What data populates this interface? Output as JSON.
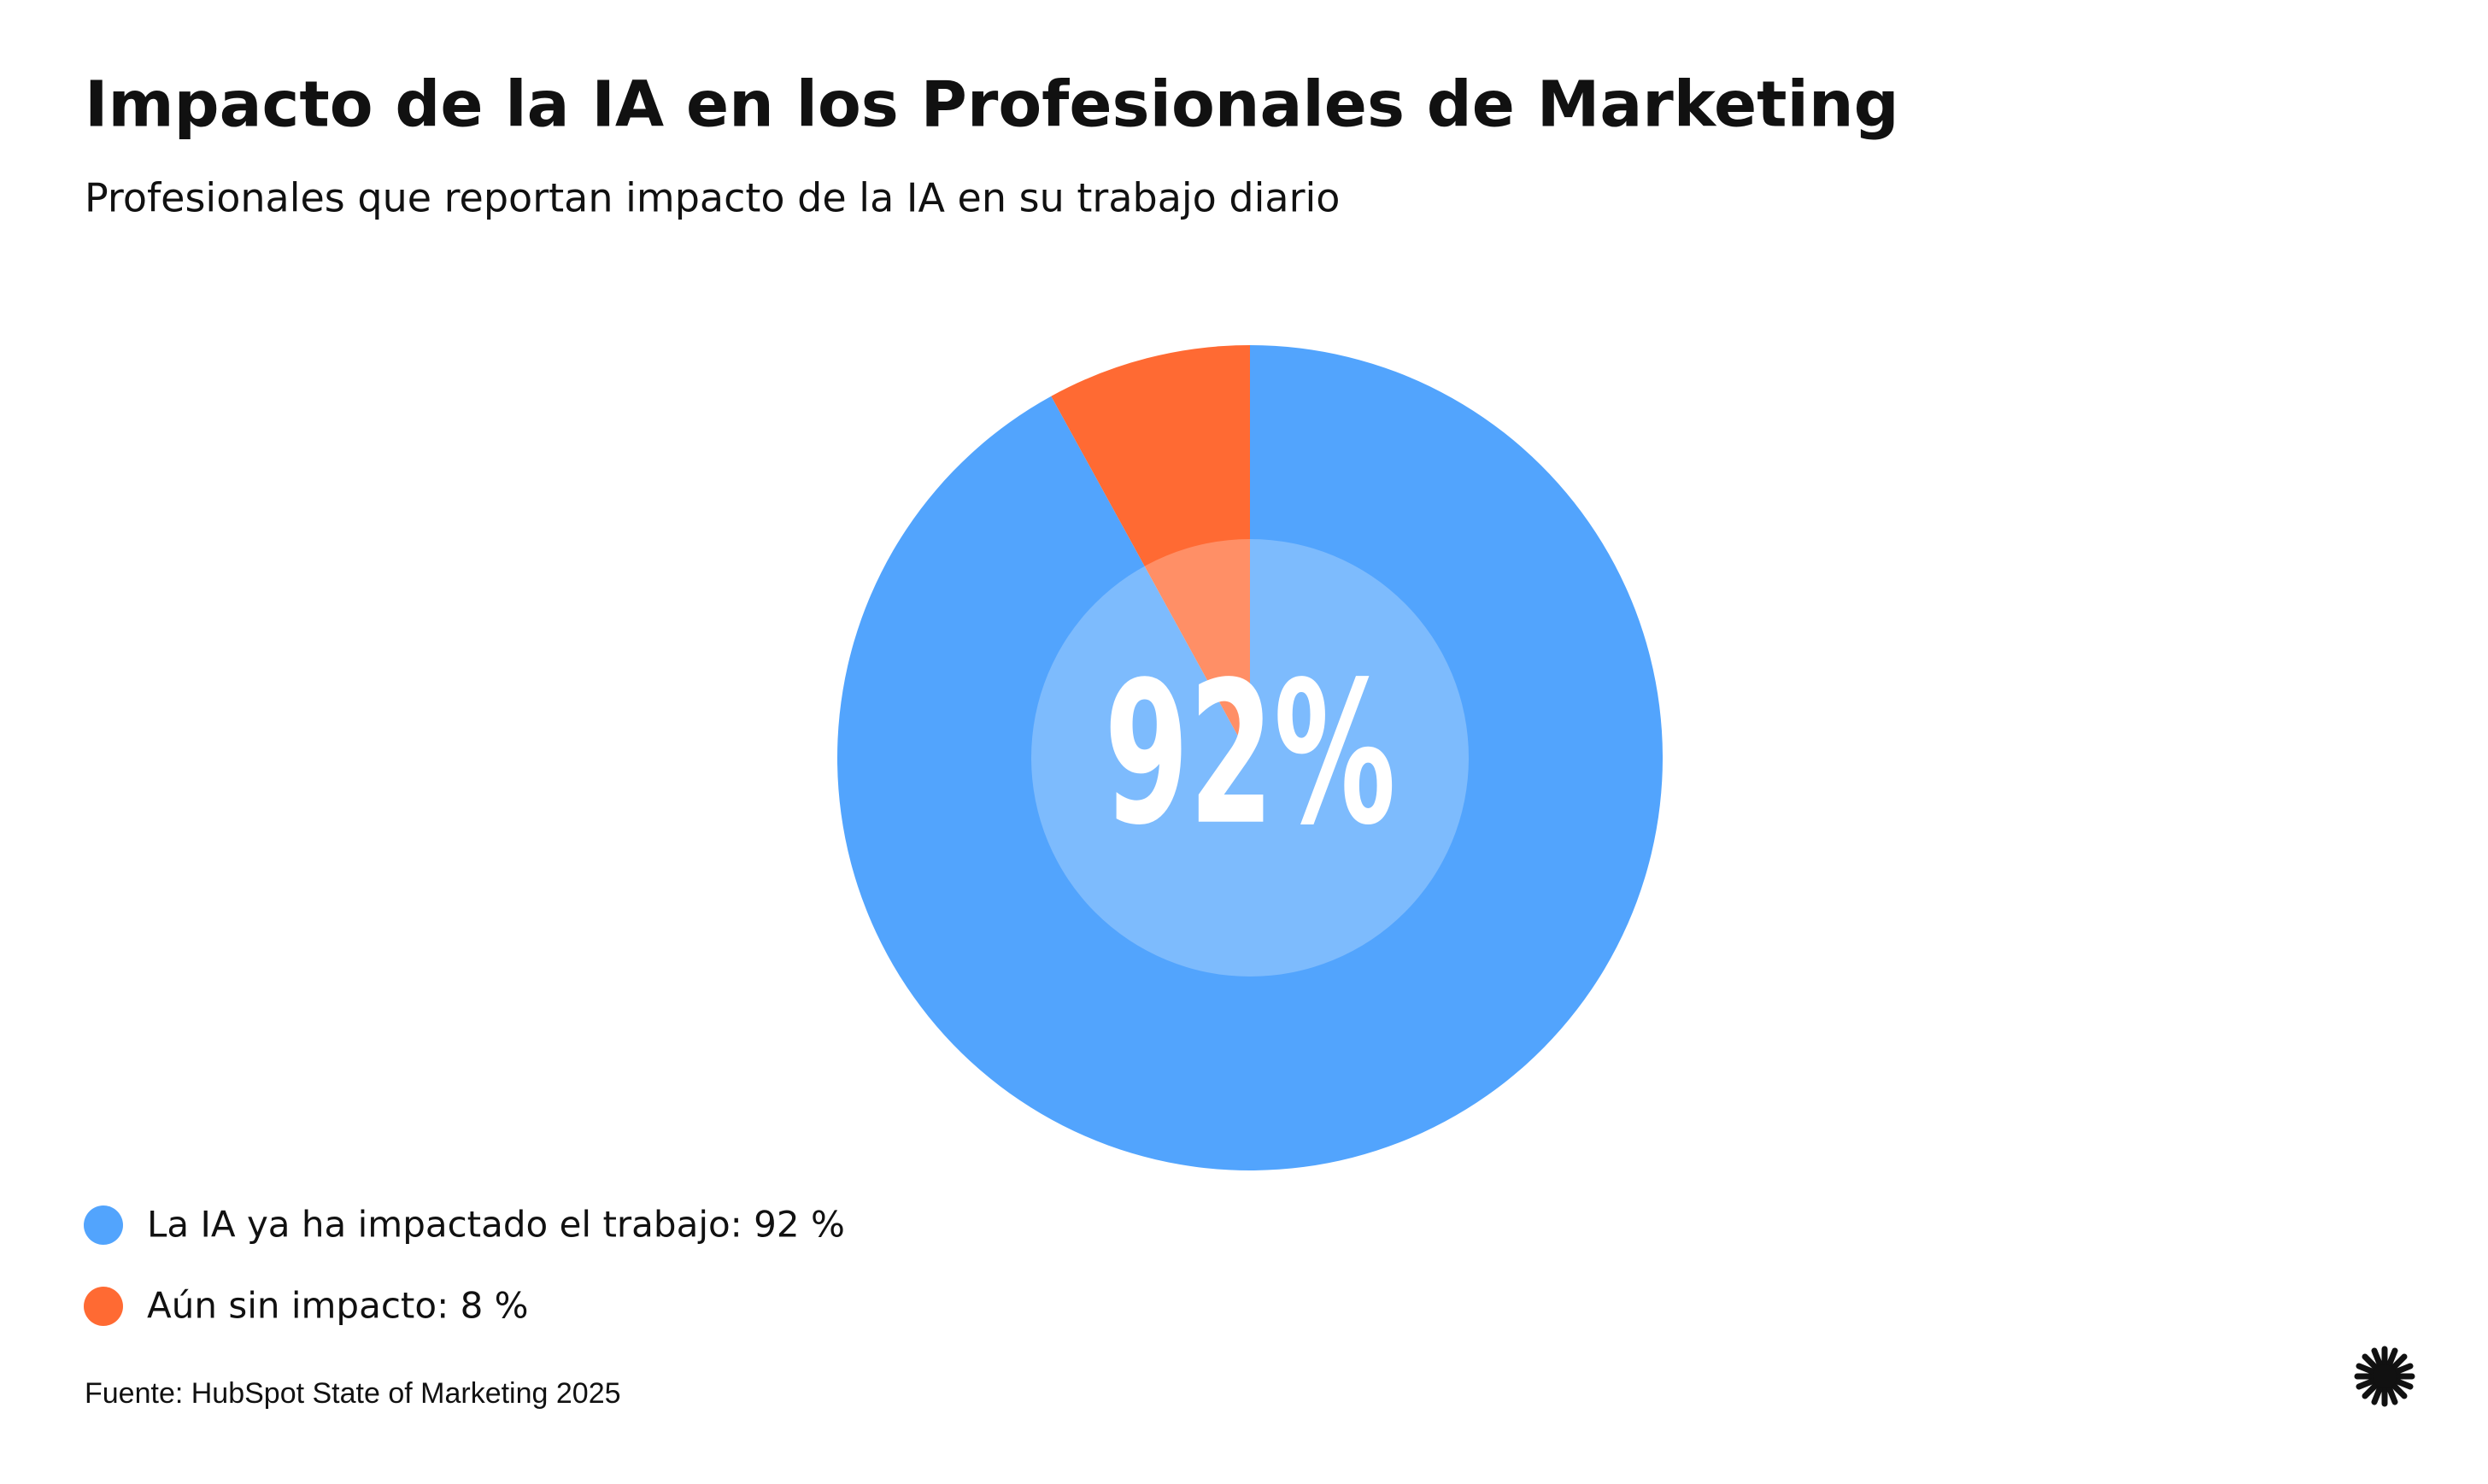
{
  "chart_data": {
    "type": "pie",
    "title": "Impacto de la IA en los Profesionales de Marketing",
    "subtitle": "Profesionales que reportan impacto de la IA en su trabajo diario",
    "categories": [
      "La IA ya ha impactado el trabajo: 92 %",
      "Aún sin impacto: 8 %"
    ],
    "values": [
      92,
      8
    ],
    "colors": [
      "#52a4fd",
      "#ff6a33"
    ],
    "center_label": "92%",
    "source": "Fuente: HubSpot State of Marketing 2025"
  }
}
